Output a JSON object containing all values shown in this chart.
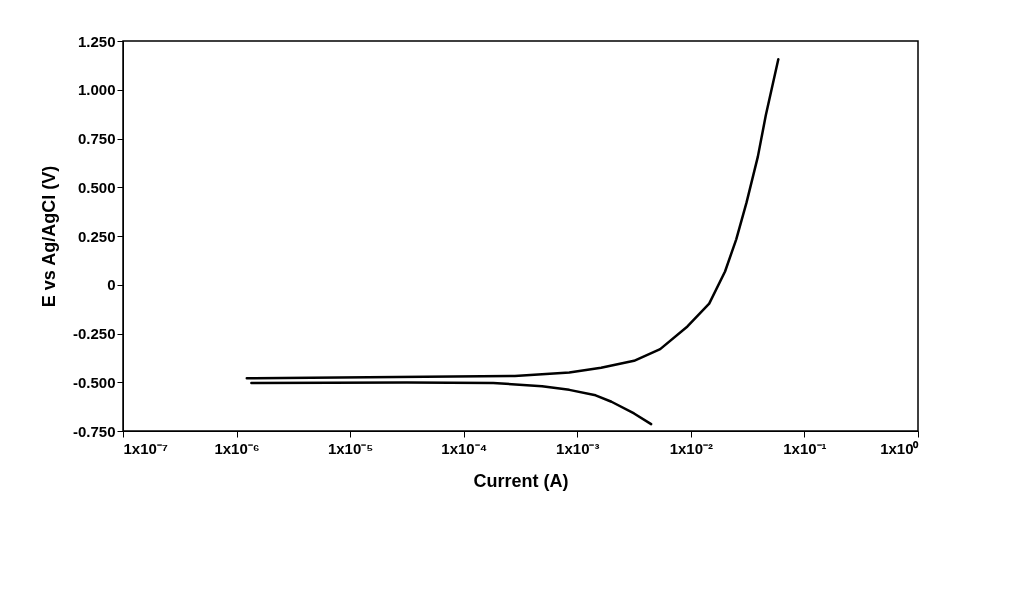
{
  "chart_data": {
    "type": "line",
    "xlabel": "Current (A)",
    "ylabel": "E vs Ag/AgCl (V)",
    "log": "x",
    "grid": false,
    "marker": "none",
    "line_style": "solid",
    "xlim": [
      1e-07,
      1
    ],
    "ylim": [
      -0.75,
      1.25
    ],
    "xticks": [
      {
        "value": 1e-07,
        "label": "1x10⁻⁷"
      },
      {
        "value": 1e-06,
        "label": "1x10⁻⁶"
      },
      {
        "value": 1e-05,
        "label": "1x10⁻⁵"
      },
      {
        "value": 0.0001,
        "label": "1x10⁻⁴"
      },
      {
        "value": 0.001,
        "label": "1x10⁻³"
      },
      {
        "value": 0.01,
        "label": "1x10⁻²"
      },
      {
        "value": 0.1,
        "label": "1x10⁻¹"
      },
      {
        "value": 1,
        "label": "1x10⁰"
      }
    ],
    "yticks": [
      {
        "value": -0.75,
        "label": "-0.750"
      },
      {
        "value": -0.5,
        "label": "-0.500"
      },
      {
        "value": -0.25,
        "label": "-0.250"
      },
      0,
      {
        "value": 0.25,
        "label": "0.250"
      },
      {
        "value": 0.5,
        "label": "0.500"
      },
      {
        "value": 0.75,
        "label": "0.750"
      },
      {
        "value": 1,
        "label": "1.000"
      },
      {
        "value": 1.25,
        "label": "1.250"
      }
    ],
    "series": [
      {
        "color": "#000000",
        "x": [
          1.23e-06,
          2.57e-05,
          0.000282,
          0.00085,
          0.00162,
          0.00316,
          0.00537,
          0.00933,
          0.0145,
          0.02,
          0.0251,
          0.0309,
          0.0389,
          0.0457,
          0.0589
        ],
        "values": [
          -0.48,
          -0.473,
          -0.468,
          -0.45,
          -0.426,
          -0.39,
          -0.33,
          -0.214,
          -0.097,
          0.068,
          0.233,
          0.421,
          0.657,
          0.869,
          1.156
        ]
      },
      {
        "color": "#000000",
        "x": [
          1.35e-06,
          3.16e-05,
          0.000182,
          0.00049,
          0.00085,
          0.00145,
          0.002,
          0.00316,
          0.00447
        ],
        "values": [
          -0.504,
          -0.501,
          -0.504,
          -0.52,
          -0.539,
          -0.567,
          -0.6,
          -0.66,
          -0.715
        ]
      }
    ]
  }
}
